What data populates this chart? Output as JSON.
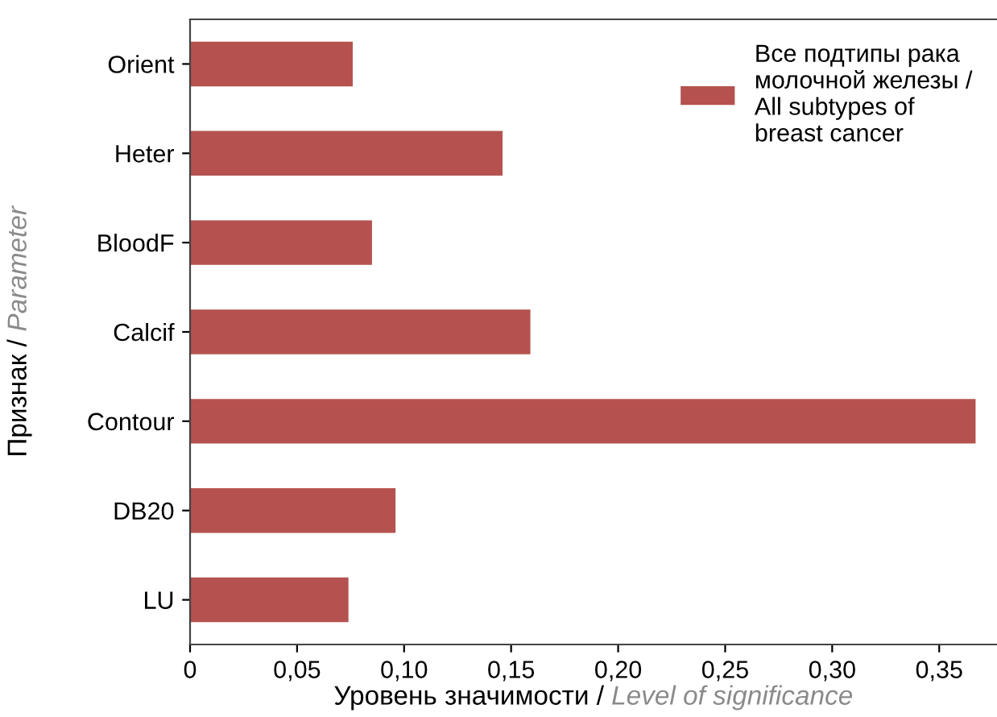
{
  "chart_data": {
    "type": "bar",
    "orientation": "horizontal",
    "categories": [
      "Orient",
      "Heter",
      "BloodF",
      "Calcif",
      "Contour",
      "DB20",
      "LU"
    ],
    "series": [
      {
        "name": "Все подтипы рака молочной железы / All subtypes of breast cancer",
        "color": "#b5524f",
        "values": [
          0.076,
          0.146,
          0.085,
          0.159,
          0.367,
          0.096,
          0.074
        ]
      }
    ],
    "xlabel": "Уровень значимости / Level of significance",
    "ylabel": "Признак / Parameter",
    "xlim": [
      0,
      0.377
    ],
    "xticks": [
      0,
      {
        "value": 0.05,
        "label": "0,05"
      },
      {
        "value": 0.1,
        "label": "0,10"
      },
      {
        "value": 0.15,
        "label": "0,15"
      },
      {
        "value": 0.2,
        "label": "0,20"
      },
      {
        "value": 0.25,
        "label": "0,25"
      },
      {
        "value": 0.3,
        "label": "0,30"
      },
      {
        "value": 0.35,
        "label": "0,35"
      }
    ],
    "grid": false,
    "legend": "top right"
  }
}
